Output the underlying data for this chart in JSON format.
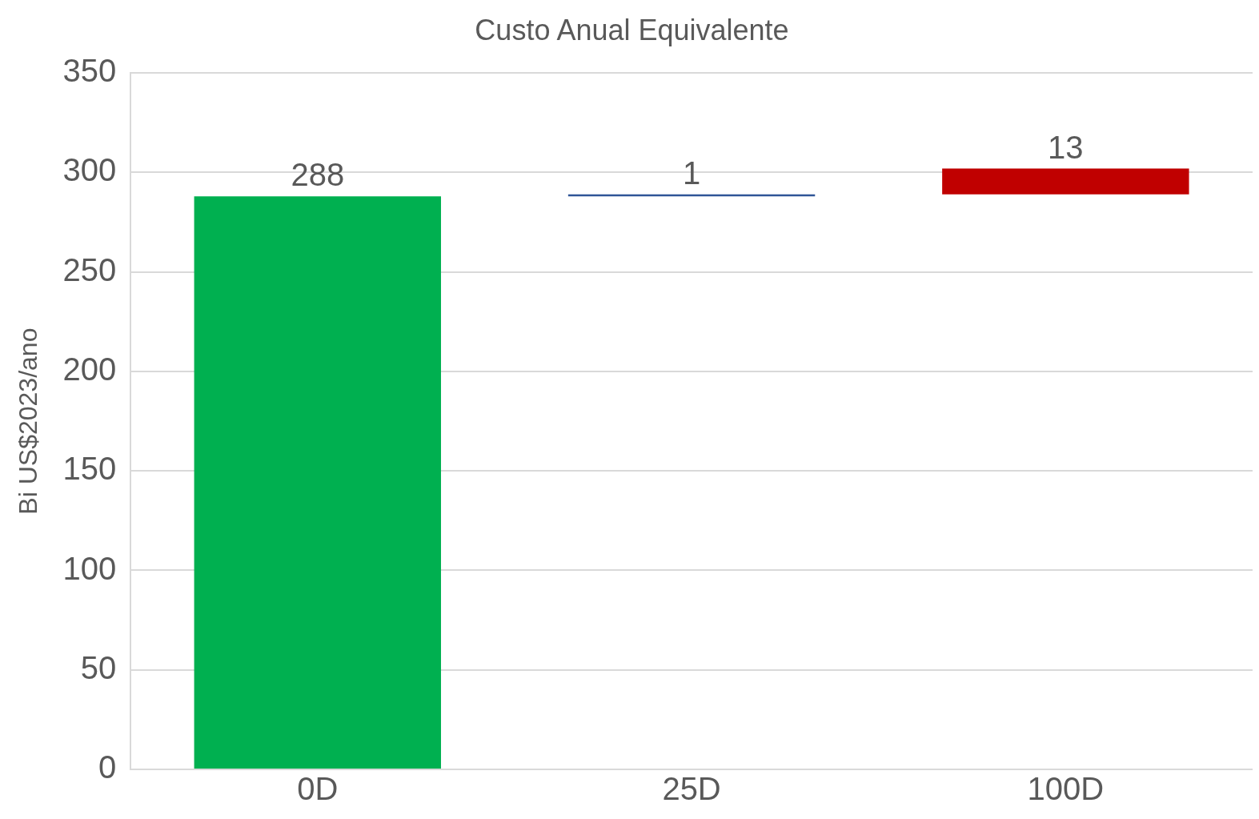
{
  "chart_data": {
    "type": "bar",
    "title": "Custo Anual Equivalente",
    "ylabel": "Bi US$2023/ano",
    "categories": [
      "0D",
      "25D",
      "100D"
    ],
    "values": [
      288,
      1,
      13
    ],
    "base": [
      0,
      288,
      289
    ],
    "colors": [
      "#00b050",
      "#2f5597",
      "#c00000"
    ],
    "ylim": [
      0,
      350
    ],
    "yticks": [
      0,
      50,
      100,
      150,
      200,
      250,
      300,
      350
    ],
    "grid": "y",
    "data_labels": true,
    "legend": false
  }
}
